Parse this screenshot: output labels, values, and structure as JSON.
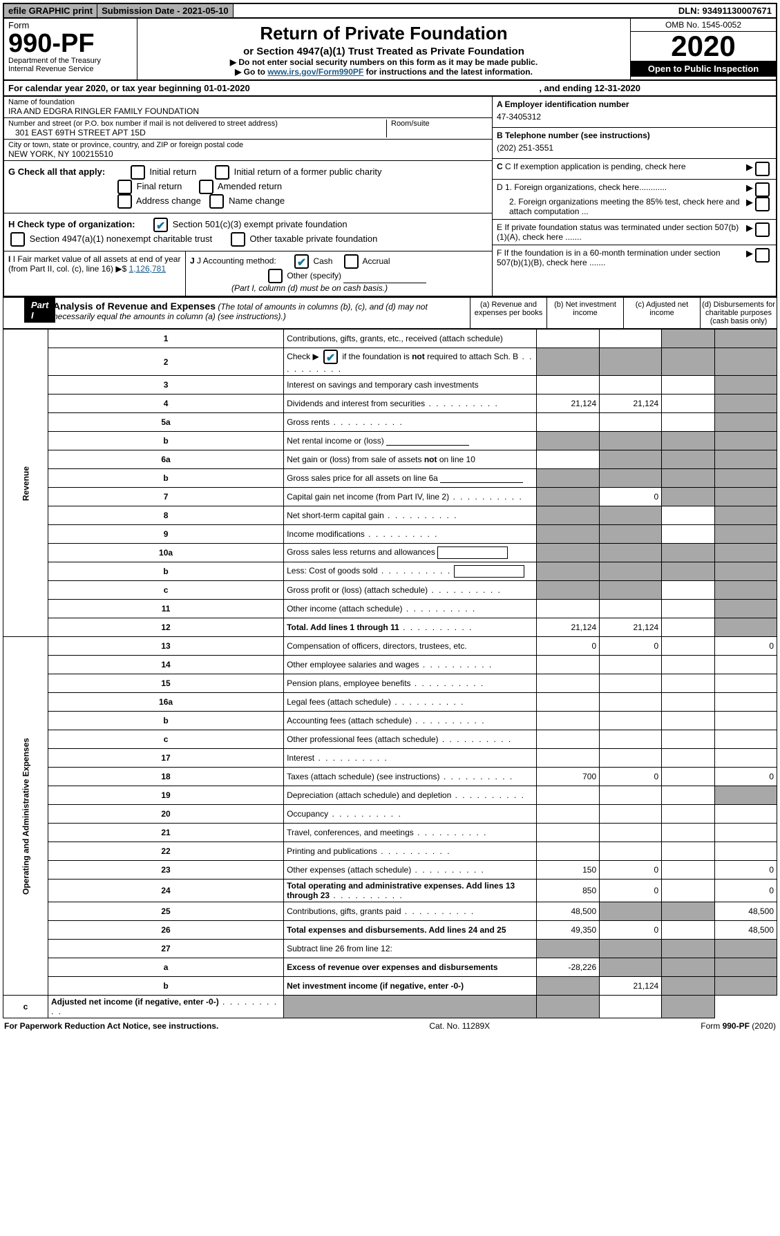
{
  "top": {
    "efile": "efile GRAPHIC print",
    "subdate": "Submission Date - 2021-05-10",
    "dln": "DLN: 93491130007671"
  },
  "header": {
    "form_word": "Form",
    "form_num": "990-PF",
    "dept": "Department of the Treasury",
    "irs": "Internal Revenue Service",
    "title": "Return of Private Foundation",
    "subtitle": "or Section 4947(a)(1) Trust Treated as Private Foundation",
    "note1": "▶ Do not enter social security numbers on this form as it may be made public.",
    "note2_pre": "▶ Go to ",
    "note2_link": "www.irs.gov/Form990PF",
    "note2_post": " for instructions and the latest information.",
    "omb": "OMB No. 1545-0052",
    "year": "2020",
    "open": "Open to Public Inspection"
  },
  "calendar": {
    "pre": "For calendar year 2020, or tax year beginning 01-01-2020",
    "mid": ", and ending 12-31-2020"
  },
  "info": {
    "name_lbl": "Name of foundation",
    "name": "IRA AND EDGRA RINGLER FAMILY FOUNDATION",
    "addr_lbl": "Number and street (or P.O. box number if mail is not delivered to street address)",
    "addr": "301 EAST 69TH STREET APT 15D",
    "room_lbl": "Room/suite",
    "city_lbl": "City or town, state or province, country, and ZIP or foreign postal code",
    "city": "NEW YORK, NY  100215510",
    "a_lbl": "A Employer identification number",
    "a_val": "47-3405312",
    "b_lbl": "B Telephone number (see instructions)",
    "b_val": "(202) 251-3551",
    "c_lbl": "C If exemption application is pending, check here",
    "d1": "D 1. Foreign organizations, check here............",
    "d2": "2. Foreign organizations meeting the 85% test, check here and attach computation ...",
    "e": "E  If private foundation status was terminated under section 507(b)(1)(A), check here .......",
    "f": "F  If the foundation is in a 60-month termination under section 507(b)(1)(B), check here .......",
    "g_lbl": "G Check all that apply:",
    "g_opts": [
      "Initial return",
      "Initial return of a former public charity",
      "Final return",
      "Amended return",
      "Address change",
      "Name change"
    ],
    "h_lbl": "H Check type of organization:",
    "h1": "Section 501(c)(3) exempt private foundation",
    "h2": "Section 4947(a)(1) nonexempt charitable trust",
    "h3": "Other taxable private foundation",
    "i_lbl": "I Fair market value of all assets at end of year (from Part II, col. (c), line 16)",
    "i_val": "1,126,781",
    "j_lbl": "J Accounting method:",
    "j_cash": "Cash",
    "j_accrual": "Accrual",
    "j_other": "Other (specify)",
    "j_note": "(Part I, column (d) must be on cash basis.)"
  },
  "part1": {
    "label": "Part I",
    "title": "Analysis of Revenue and Expenses",
    "note": "(The total of amounts in columns (b), (c), and (d) may not necessarily equal the amounts in column (a) (see instructions).)",
    "col_a": "(a)    Revenue and expenses per books",
    "col_b": "(b)  Net investment income",
    "col_c": "(c)  Adjusted net income",
    "col_d": "(d)  Disbursements for charitable purposes (cash basis only)"
  },
  "sides": {
    "rev": "Revenue",
    "exp": "Operating and Administrative Expenses"
  },
  "rows": [
    {
      "n": "1",
      "d": "Contributions, gifts, grants, etc., received (attach schedule)",
      "a": "",
      "b": "",
      "c": "S",
      "dd": "S"
    },
    {
      "n": "2",
      "d": "Check ▶ ✔ if the foundation is not required to attach Sch. B",
      "a": "S",
      "b": "S",
      "c": "S",
      "dd": "S",
      "dots": 1
    },
    {
      "n": "3",
      "d": "Interest on savings and temporary cash investments",
      "a": "",
      "b": "",
      "c": "",
      "dd": "S"
    },
    {
      "n": "4",
      "d": "Dividends and interest from securities",
      "a": "21,124",
      "b": "21,124",
      "c": "",
      "dd": "S",
      "dots": 1
    },
    {
      "n": "5a",
      "d": "Gross rents",
      "a": "",
      "b": "",
      "c": "",
      "dd": "S",
      "dots": 1
    },
    {
      "n": "b",
      "d": "Net rental income or (loss)",
      "a": "S",
      "b": "S",
      "c": "S",
      "dd": "S",
      "line": 1
    },
    {
      "n": "6a",
      "d": "Net gain or (loss) from sale of assets not on line 10",
      "a": "",
      "b": "S",
      "c": "S",
      "dd": "S"
    },
    {
      "n": "b",
      "d": "Gross sales price for all assets on line 6a",
      "a": "S",
      "b": "S",
      "c": "S",
      "dd": "S",
      "line": 1
    },
    {
      "n": "7",
      "d": "Capital gain net income (from Part IV, line 2)",
      "a": "S",
      "b": "0",
      "c": "S",
      "dd": "S",
      "dots": 1
    },
    {
      "n": "8",
      "d": "Net short-term capital gain",
      "a": "S",
      "b": "S",
      "c": "",
      "dd": "S",
      "dots": 1
    },
    {
      "n": "9",
      "d": "Income modifications",
      "a": "S",
      "b": "S",
      "c": "",
      "dd": "S",
      "dots": 1
    },
    {
      "n": "10a",
      "d": "Gross sales less returns and allowances",
      "a": "S",
      "b": "S",
      "c": "S",
      "dd": "S",
      "box": 1
    },
    {
      "n": "b",
      "d": "Less: Cost of goods sold",
      "a": "S",
      "b": "S",
      "c": "S",
      "dd": "S",
      "dots": 1,
      "box": 1
    },
    {
      "n": "c",
      "d": "Gross profit or (loss) (attach schedule)",
      "a": "S",
      "b": "S",
      "c": "",
      "dd": "S",
      "dots": 1
    },
    {
      "n": "11",
      "d": "Other income (attach schedule)",
      "a": "",
      "b": "",
      "c": "",
      "dd": "S",
      "dots": 1
    },
    {
      "n": "12",
      "d": "Total. Add lines 1 through 11",
      "a": "21,124",
      "b": "21,124",
      "c": "",
      "dd": "S",
      "bold": 1,
      "dots": 1
    },
    {
      "n": "13",
      "d": "Compensation of officers, directors, trustees, etc.",
      "a": "0",
      "b": "0",
      "c": "",
      "dd": "0"
    },
    {
      "n": "14",
      "d": "Other employee salaries and wages",
      "a": "",
      "b": "",
      "c": "",
      "dd": "",
      "dots": 1
    },
    {
      "n": "15",
      "d": "Pension plans, employee benefits",
      "a": "",
      "b": "",
      "c": "",
      "dd": "",
      "dots": 1
    },
    {
      "n": "16a",
      "d": "Legal fees (attach schedule)",
      "a": "",
      "b": "",
      "c": "",
      "dd": "",
      "dots": 1
    },
    {
      "n": "b",
      "d": "Accounting fees (attach schedule)",
      "a": "",
      "b": "",
      "c": "",
      "dd": "",
      "dots": 1
    },
    {
      "n": "c",
      "d": "Other professional fees (attach schedule)",
      "a": "",
      "b": "",
      "c": "",
      "dd": "",
      "dots": 1
    },
    {
      "n": "17",
      "d": "Interest",
      "a": "",
      "b": "",
      "c": "",
      "dd": "",
      "dots": 1
    },
    {
      "n": "18",
      "d": "Taxes (attach schedule) (see instructions)",
      "a": "700",
      "b": "0",
      "c": "",
      "dd": "0",
      "dots": 1
    },
    {
      "n": "19",
      "d": "Depreciation (attach schedule) and depletion",
      "a": "",
      "b": "",
      "c": "",
      "dd": "S",
      "dots": 1
    },
    {
      "n": "20",
      "d": "Occupancy",
      "a": "",
      "b": "",
      "c": "",
      "dd": "",
      "dots": 1
    },
    {
      "n": "21",
      "d": "Travel, conferences, and meetings",
      "a": "",
      "b": "",
      "c": "",
      "dd": "",
      "dots": 1
    },
    {
      "n": "22",
      "d": "Printing and publications",
      "a": "",
      "b": "",
      "c": "",
      "dd": "",
      "dots": 1
    },
    {
      "n": "23",
      "d": "Other expenses (attach schedule)",
      "a": "150",
      "b": "0",
      "c": "",
      "dd": "0",
      "dots": 1
    },
    {
      "n": "24",
      "d": "Total operating and administrative expenses. Add lines 13 through 23",
      "a": "850",
      "b": "0",
      "c": "",
      "dd": "0",
      "bold": 1,
      "dots": 1
    },
    {
      "n": "25",
      "d": "Contributions, gifts, grants paid",
      "a": "48,500",
      "b": "S",
      "c": "S",
      "dd": "48,500",
      "dots": 1
    },
    {
      "n": "26",
      "d": "Total expenses and disbursements. Add lines 24 and 25",
      "a": "49,350",
      "b": "0",
      "c": "",
      "dd": "48,500",
      "bold": 1
    },
    {
      "n": "27",
      "d": "Subtract line 26 from line 12:",
      "a": "S",
      "b": "S",
      "c": "S",
      "dd": "S"
    },
    {
      "n": "a",
      "d": "Excess of revenue over expenses and disbursements",
      "a": "-28,226",
      "b": "S",
      "c": "S",
      "dd": "S",
      "bold": 1
    },
    {
      "n": "b",
      "d": "Net investment income (if negative, enter -0-)",
      "a": "S",
      "b": "21,124",
      "c": "S",
      "dd": "S",
      "bold": 1
    },
    {
      "n": "c",
      "d": "Adjusted net income (if negative, enter -0-)",
      "a": "S",
      "b": "S",
      "c": "",
      "dd": "S",
      "bold": 1,
      "dots": 1
    }
  ],
  "footer": {
    "left": "For Paperwork Reduction Act Notice, see instructions.",
    "mid": "Cat. No. 11289X",
    "right": "Form 990-PF (2020)"
  }
}
